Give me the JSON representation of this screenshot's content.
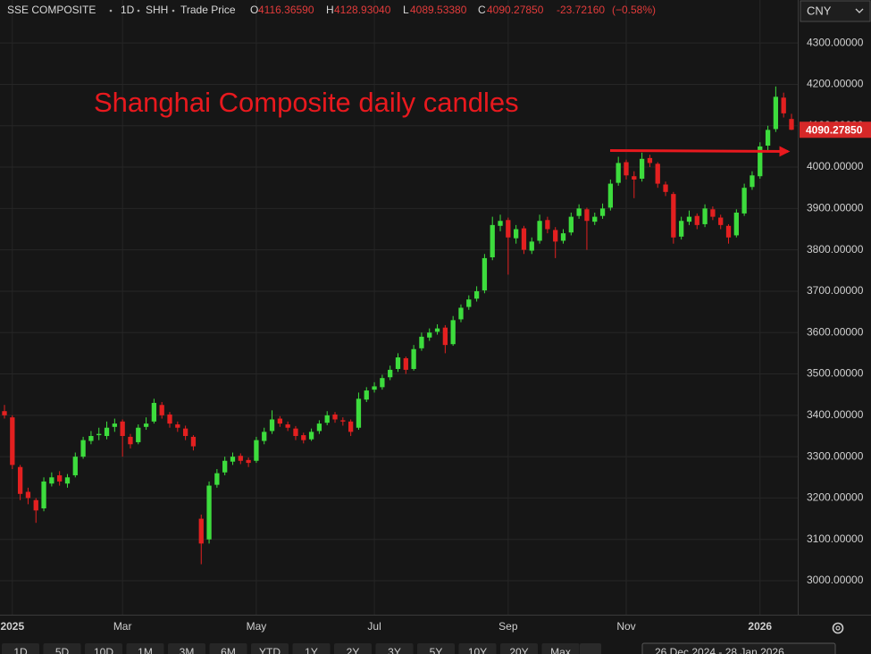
{
  "header": {
    "symbol": "SSE COMPOSITE",
    "interval": "1D",
    "exchange": "SHH",
    "price_type": "Trade Price",
    "ohlc": [
      {
        "label": "O",
        "value": "4116.36590"
      },
      {
        "label": "H",
        "value": "4128.93040"
      },
      {
        "label": "L",
        "value": "4089.53380"
      },
      {
        "label": "C",
        "value": "4090.27850"
      }
    ],
    "change": "-23.72160",
    "change_pct": "(−0.58%)",
    "currency": "CNY"
  },
  "toolbar": {
    "ranges": [
      "1D",
      "5D",
      "10D",
      "1M",
      "3M",
      "6M",
      "YTD",
      "1Y",
      "2Y",
      "3Y",
      "5Y",
      "10Y",
      "20Y",
      "Max"
    ],
    "date_range": "26 Dec 2024 - 28 Jan 2026"
  },
  "chart_data": {
    "type": "candlestick",
    "annotation": "Shanghai Composite daily candles",
    "up_color": "#3ddc3d",
    "down_color": "#e32020",
    "grid": true,
    "ylim": [
      2918,
      4404
    ],
    "yticks": [
      {
        "value": 3000,
        "label": "3000.00000"
      },
      {
        "value": 3100,
        "label": "3100.00000"
      },
      {
        "value": 3200,
        "label": "3200.00000"
      },
      {
        "value": 3300,
        "label": "3300.00000"
      },
      {
        "value": 3400,
        "label": "3400.00000"
      },
      {
        "value": 3500,
        "label": "3500.00000"
      },
      {
        "value": 3600,
        "label": "3600.00000"
      },
      {
        "value": 3700,
        "label": "3700.00000"
      },
      {
        "value": 3800,
        "label": "3800.00000"
      },
      {
        "value": 3900,
        "label": "3900.00000"
      },
      {
        "value": 4000,
        "label": "4000.00000"
      },
      {
        "value": 4100,
        "label": "4100.00000"
      },
      {
        "value": 4200,
        "label": "4200.00000"
      },
      {
        "value": 4300,
        "label": "4300.00000"
      }
    ],
    "last_price": {
      "value": 4090.2785,
      "label": "4090.27850"
    },
    "categories": [
      null,
      "2025",
      null,
      null,
      null,
      null,
      null,
      null,
      null,
      null,
      null,
      null,
      null,
      null,
      null,
      "Mar",
      null,
      null,
      null,
      null,
      null,
      null,
      null,
      null,
      null,
      null,
      null,
      null,
      null,
      null,
      null,
      null,
      "May",
      null,
      null,
      null,
      null,
      null,
      null,
      null,
      null,
      null,
      null,
      null,
      null,
      null,
      null,
      "Jul",
      null,
      null,
      null,
      null,
      null,
      null,
      null,
      null,
      null,
      null,
      null,
      null,
      null,
      null,
      null,
      null,
      "Sep",
      null,
      null,
      null,
      null,
      null,
      null,
      null,
      null,
      null,
      null,
      null,
      null,
      null,
      null,
      "Nov",
      null,
      null,
      null,
      null,
      null,
      null,
      null,
      null,
      null,
      null,
      null,
      null,
      null,
      null,
      null,
      null,
      "2026",
      null,
      null,
      null,
      null
    ],
    "open": [
      3410,
      3395,
      3275,
      3215,
      3195,
      3175,
      3235,
      3255,
      3235,
      3255,
      3300,
      3338,
      3352,
      3350,
      3372,
      3385,
      3348,
      3335,
      3372,
      3385,
      3425,
      3402,
      3378,
      3368,
      3348,
      3150,
      3100,
      3232,
      3262,
      3288,
      3302,
      3292,
      3290,
      3338,
      3362,
      3392,
      3378,
      3368,
      3352,
      3342,
      3362,
      3382,
      3402,
      3388,
      3385,
      3370,
      3438,
      3462,
      3468,
      3492,
      3512,
      3538,
      3512,
      3562,
      3588,
      3602,
      3612,
      3572,
      3632,
      3662,
      3682,
      3702,
      3782,
      3858,
      3872,
      3828,
      3852,
      3798,
      3822,
      3872,
      3848,
      3822,
      3842,
      3882,
      3898,
      3868,
      3882,
      3902,
      3962,
      4012,
      3978,
      3972,
      4022,
      4008,
      3958,
      3935,
      3832,
      3868,
      3882,
      3862,
      3898,
      3878,
      3858,
      3835,
      3888,
      3952,
      3978,
      4052,
      4092,
      4168,
      4116.3659
    ],
    "high": [
      3425,
      3400,
      3280,
      3225,
      3200,
      3250,
      3262,
      3265,
      3258,
      3310,
      3348,
      3362,
      3370,
      3385,
      3392,
      3390,
      3355,
      3378,
      3395,
      3440,
      3432,
      3408,
      3385,
      3375,
      3352,
      3160,
      3240,
      3270,
      3300,
      3310,
      3308,
      3298,
      3348,
      3370,
      3412,
      3398,
      3385,
      3374,
      3358,
      3368,
      3388,
      3410,
      3408,
      3395,
      3390,
      3455,
      3468,
      3480,
      3498,
      3520,
      3550,
      3542,
      3570,
      3600,
      3610,
      3620,
      3618,
      3640,
      3668,
      3690,
      3712,
      3790,
      3880,
      3885,
      3878,
      3860,
      3858,
      3830,
      3885,
      3880,
      3855,
      3850,
      3890,
      3910,
      3902,
      3890,
      3912,
      3970,
      4025,
      4018,
      3990,
      4035,
      4030,
      4012,
      3965,
      3940,
      3880,
      3895,
      3888,
      3910,
      3905,
      3885,
      3862,
      3898,
      3960,
      3990,
      4060,
      4100,
      4195,
      4180,
      4128.9304
    ],
    "low": [
      3392,
      3270,
      3195,
      3185,
      3140,
      3168,
      3228,
      3230,
      3225,
      3250,
      3295,
      3330,
      3340,
      3342,
      3360,
      3300,
      3320,
      3330,
      3365,
      3380,
      3392,
      3370,
      3360,
      3340,
      3315,
      3040,
      3090,
      3225,
      3255,
      3280,
      3282,
      3275,
      3285,
      3330,
      3355,
      3372,
      3362,
      3340,
      3332,
      3338,
      3355,
      3376,
      3382,
      3375,
      3350,
      3365,
      3432,
      3455,
      3462,
      3485,
      3505,
      3500,
      3508,
      3556,
      3580,
      3595,
      3550,
      3568,
      3625,
      3655,
      3675,
      3695,
      3775,
      3845,
      3740,
      3815,
      3790,
      3790,
      3815,
      3840,
      3780,
      3815,
      3835,
      3875,
      3800,
      3860,
      3875,
      3895,
      3955,
      3970,
      3925,
      3965,
      4000,
      3950,
      3930,
      3815,
      3825,
      3860,
      3850,
      3855,
      3872,
      3850,
      3815,
      3830,
      3882,
      3945,
      3972,
      4040,
      4085,
      4120,
      4089.5338
    ],
    "close": [
      3400,
      3280,
      3210,
      3200,
      3170,
      3240,
      3250,
      3240,
      3250,
      3300,
      3340,
      3350,
      3355,
      3370,
      3380,
      3350,
      3330,
      3370,
      3380,
      3430,
      3400,
      3380,
      3370,
      3350,
      3325,
      3090,
      3230,
      3260,
      3290,
      3300,
      3290,
      3285,
      3340,
      3360,
      3390,
      3380,
      3370,
      3350,
      3340,
      3360,
      3380,
      3400,
      3390,
      3385,
      3360,
      3440,
      3460,
      3470,
      3490,
      3510,
      3540,
      3510,
      3560,
      3590,
      3600,
      3610,
      3570,
      3630,
      3660,
      3680,
      3700,
      3780,
      3860,
      3870,
      3830,
      3850,
      3800,
      3820,
      3870,
      3850,
      3820,
      3840,
      3880,
      3900,
      3870,
      3880,
      3900,
      3960,
      4010,
      3980,
      3970,
      4020,
      4010,
      3960,
      3940,
      3830,
      3870,
      3880,
      3860,
      3900,
      3880,
      3860,
      3830,
      3890,
      3950,
      3980,
      4050,
      4090,
      4170,
      4130,
      4090.2785
    ]
  }
}
